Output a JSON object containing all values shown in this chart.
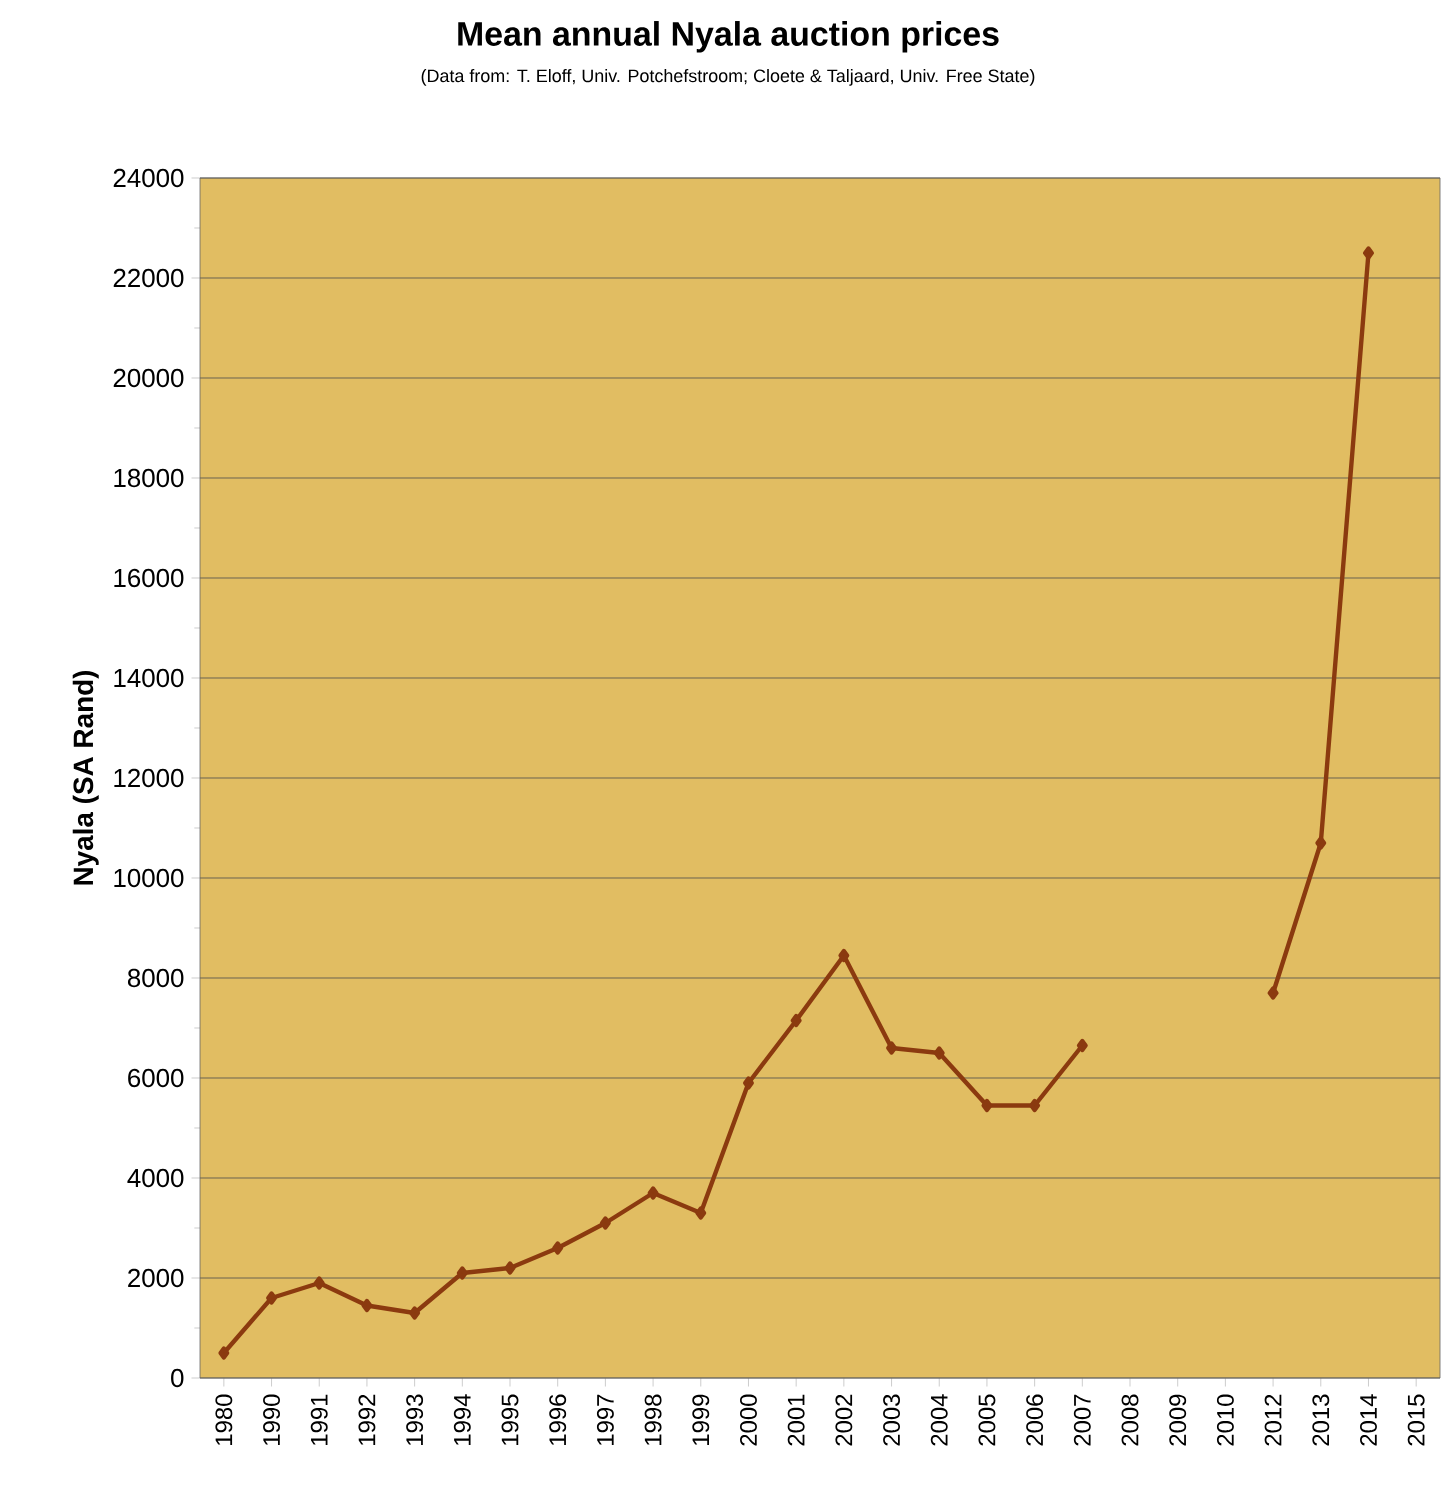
{
  "chart_data": {
    "type": "line",
    "title": "Mean annual Nyala auction prices",
    "subtitle": "(Data from: T. Eloff, Univ. Potchefstroom; Cloete & Taljaard, Univ. Free State)",
    "ylabel": "Nyala (SA Rand)",
    "categories": [
      "1980",
      "1990",
      "1991",
      "1992",
      "1993",
      "1994",
      "1995",
      "1996",
      "1997",
      "1998",
      "1999",
      "2000",
      "2001",
      "2002",
      "2003",
      "2004",
      "2005",
      "2006",
      "2007",
      "2008",
      "2009",
      "2010",
      "2012",
      "2013",
      "2014",
      "2015"
    ],
    "series": [
      {
        "color": "#8b3a0f",
        "values": [
          500,
          1600,
          1900,
          1450,
          1300,
          2100,
          2200,
          2600,
          3100,
          3700,
          3300,
          5900,
          7150,
          8450,
          6600,
          6500,
          5450,
          5450,
          6650,
          null,
          null,
          null,
          7700,
          10700,
          22500,
          null
        ]
      }
    ],
    "ylim": [
      0,
      24000
    ],
    "yticks": [
      0,
      2000,
      4000,
      6000,
      8000,
      10000,
      12000,
      14000,
      16000,
      18000,
      20000,
      22000,
      24000
    ],
    "grid": "y",
    "marker": "diamond",
    "line_style": "solid"
  }
}
